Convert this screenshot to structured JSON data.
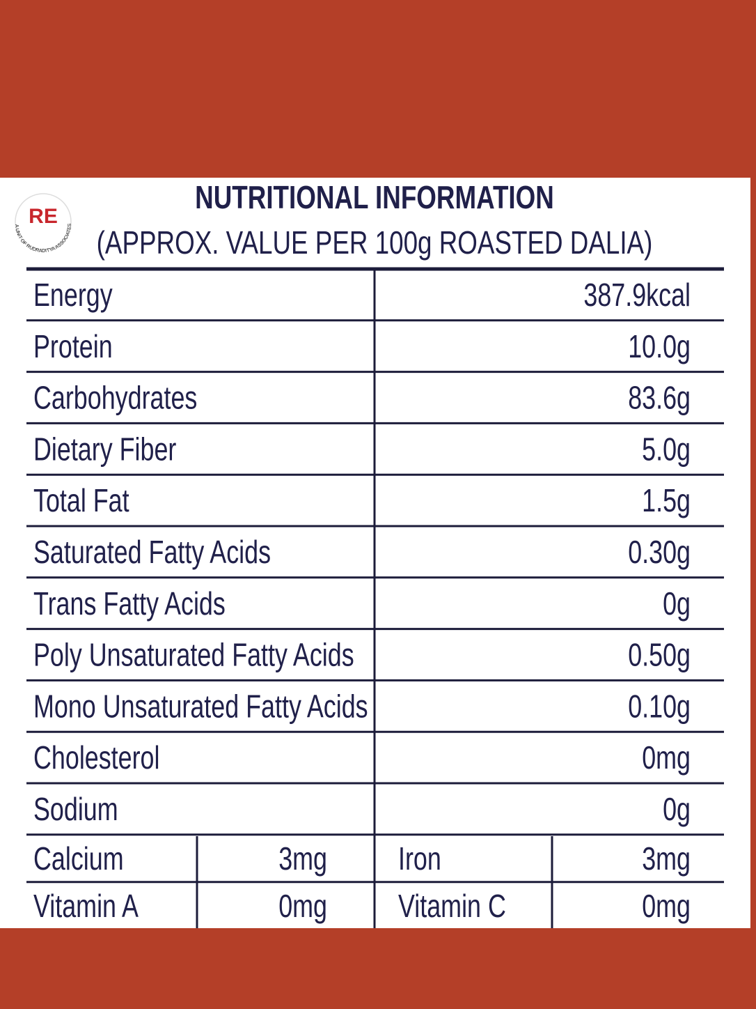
{
  "header": {
    "logo_mark": "RE",
    "logo_text": "A UNIT OF RUDRADITYA ASSOCIATES",
    "title": "NUTRITIONAL INFORMATION",
    "subtitle": "(APPROX. VALUE PER 100g ROASTED DALIA)"
  },
  "table": {
    "rows": [
      [
        "Energy",
        "387.9kcal"
      ],
      [
        "Protein",
        "10.0g"
      ],
      [
        "Carbohydrates",
        "83.6g"
      ],
      [
        "Dietary Fiber",
        "5.0g"
      ],
      [
        "Total Fat",
        "1.5g"
      ],
      [
        "Saturated Fatty Acids",
        "0.30g"
      ],
      [
        "Trans Fatty Acids",
        "0g"
      ],
      [
        "Poly Unsaturated Fatty Acids",
        "0.50g"
      ],
      [
        "Mono Unsaturated Fatty Acids",
        "0.10g"
      ],
      [
        "Cholesterol",
        "0mg"
      ],
      [
        "Sodium",
        "0g"
      ]
    ],
    "mineral_rows": [
      [
        "Calcium",
        "3mg",
        "Iron",
        "3mg"
      ],
      [
        "Vitamin A",
        "0mg",
        "Vitamin C",
        "0mg"
      ]
    ]
  }
}
